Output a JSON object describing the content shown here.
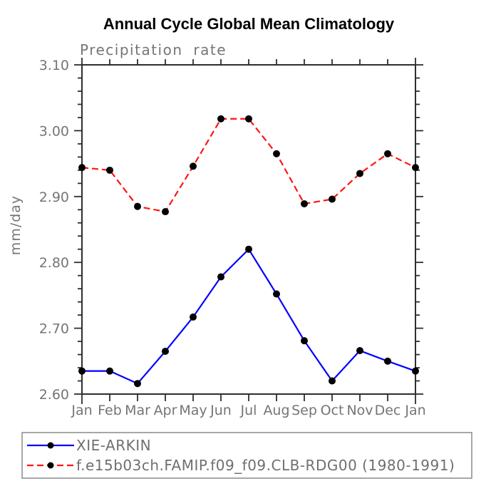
{
  "page": {
    "background_color": "#ffffff"
  },
  "chart_data": {
    "type": "line",
    "title": "Annual Cycle Global Mean Climatology",
    "subtitle": "Precipitation rate",
    "ylabel": "mm/day",
    "xlabel": "",
    "categories": [
      "Jan",
      "Feb",
      "Mar",
      "Apr",
      "May",
      "Jun",
      "Jul",
      "Aug",
      "Sep",
      "Oct",
      "Nov",
      "Dec",
      "Jan"
    ],
    "ylim": [
      2.6,
      3.1
    ],
    "y_major_ticks": [
      "2.60",
      "2.70",
      "2.80",
      "2.90",
      "3.00",
      "3.10"
    ],
    "y_minor_step": 0.02,
    "grid": false,
    "legend_position": "bottom-left-box",
    "colors": {
      "axis": "#2e2e2e",
      "text": "#757575",
      "title": "#000000",
      "marker": "#000000",
      "legend_border": "#8a8a8a"
    },
    "series": [
      {
        "name": "XIE-ARKIN",
        "color": "#0000ff",
        "style": "solid",
        "marker": "filled-circle",
        "values": [
          2.635,
          2.635,
          2.616,
          2.665,
          2.717,
          2.778,
          2.82,
          2.752,
          2.681,
          2.62,
          2.666,
          2.65,
          2.635
        ]
      },
      {
        "name": "f.e15b03ch.FAMIP.f09_f09.CLB-RDG00 (1980-1991)",
        "color": "#ff1414",
        "style": "dashed",
        "marker": "filled-circle",
        "values": [
          2.944,
          2.94,
          2.885,
          2.877,
          2.946,
          3.018,
          3.018,
          2.965,
          2.889,
          2.896,
          2.935,
          2.965,
          2.944
        ]
      }
    ]
  }
}
